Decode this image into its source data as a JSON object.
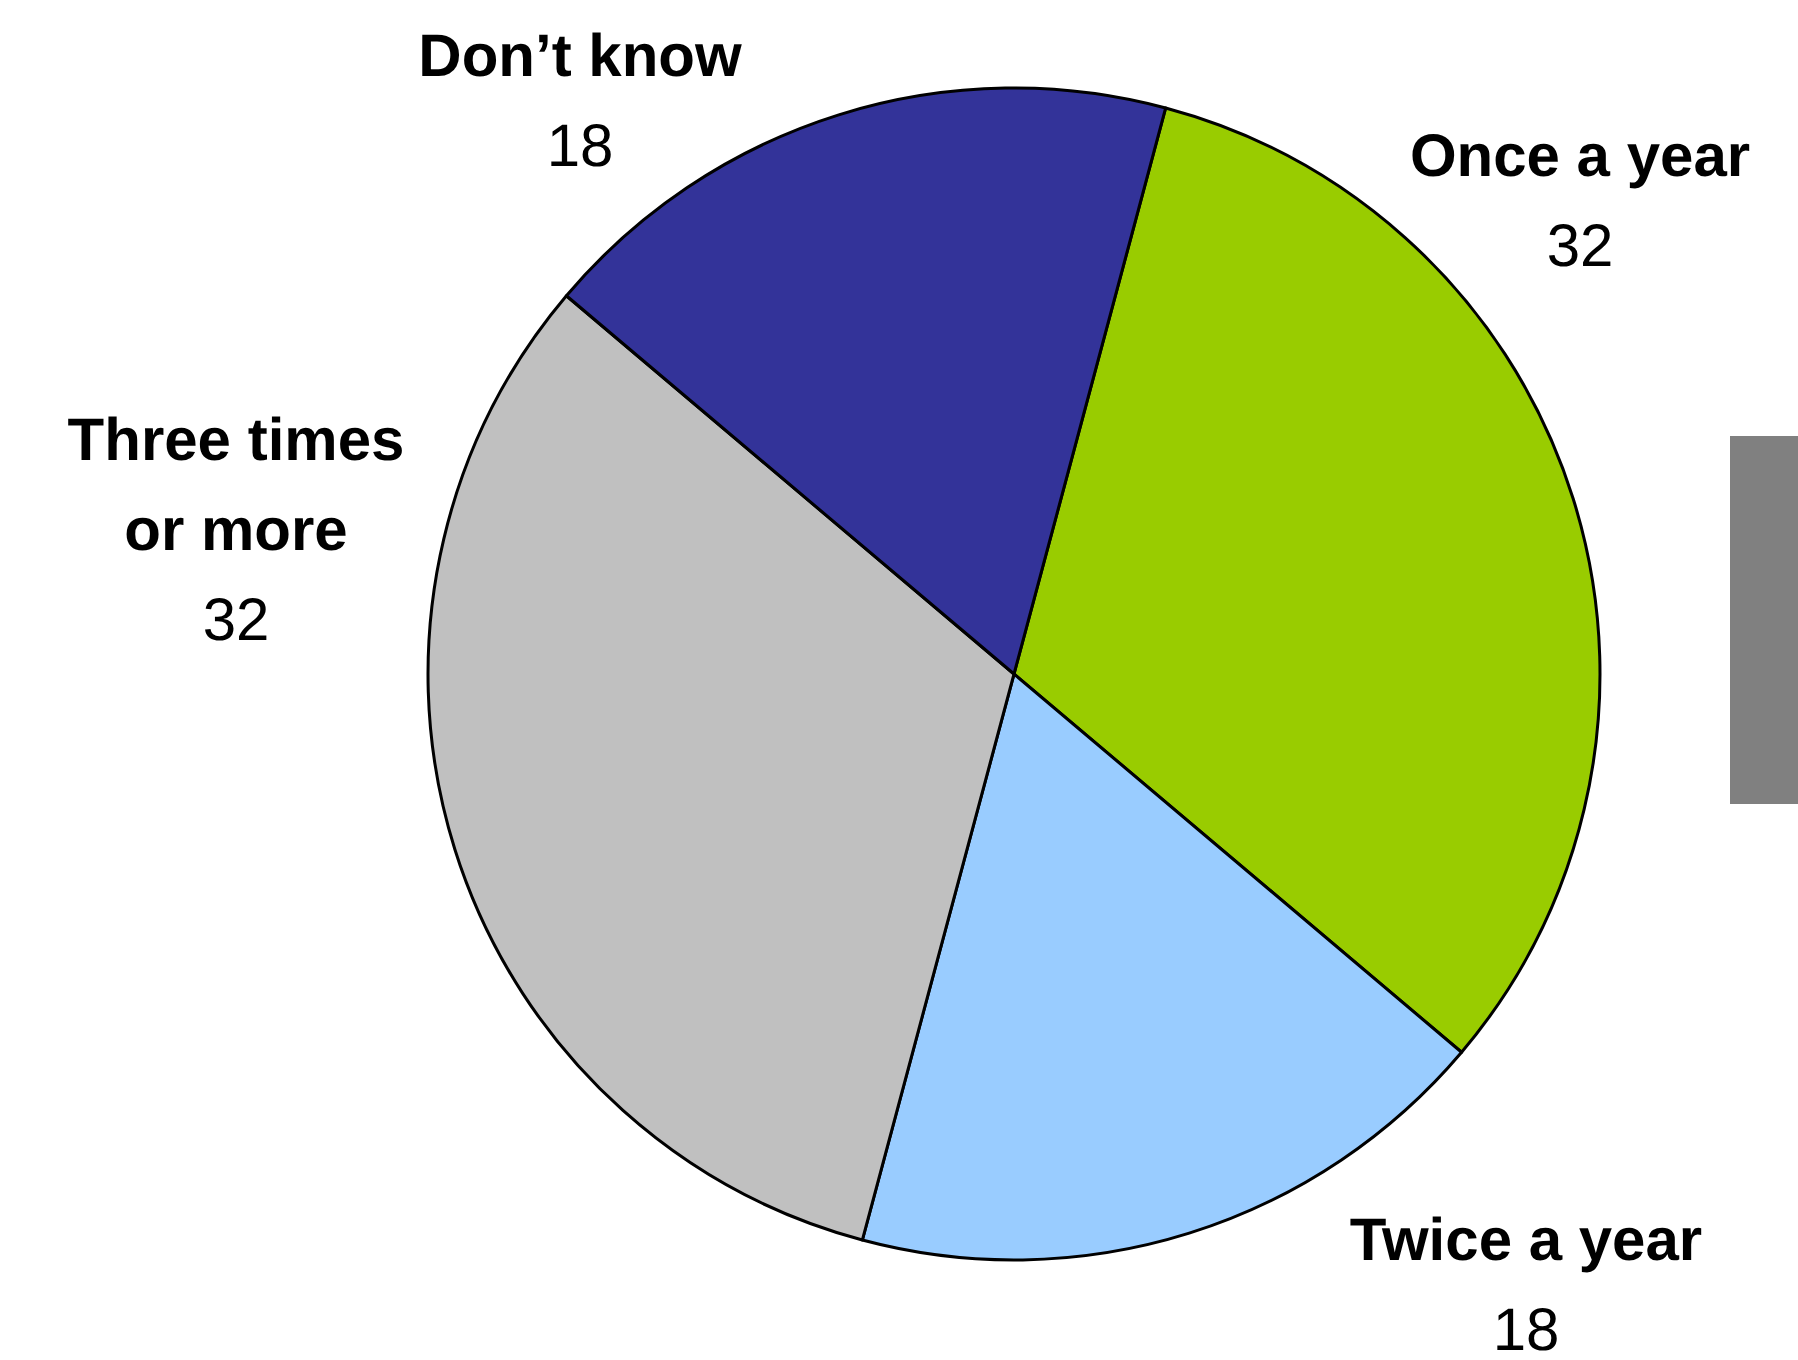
{
  "chart_data": {
    "type": "pie",
    "categories": [
      "Once a year",
      "Twice a year",
      "Three times or more",
      "Don’t know"
    ],
    "values": [
      32,
      18,
      32,
      18
    ],
    "colors": [
      "#99cc00",
      "#99ccff",
      "#c0c0c0",
      "#333399"
    ],
    "data_labels": true
  }
}
